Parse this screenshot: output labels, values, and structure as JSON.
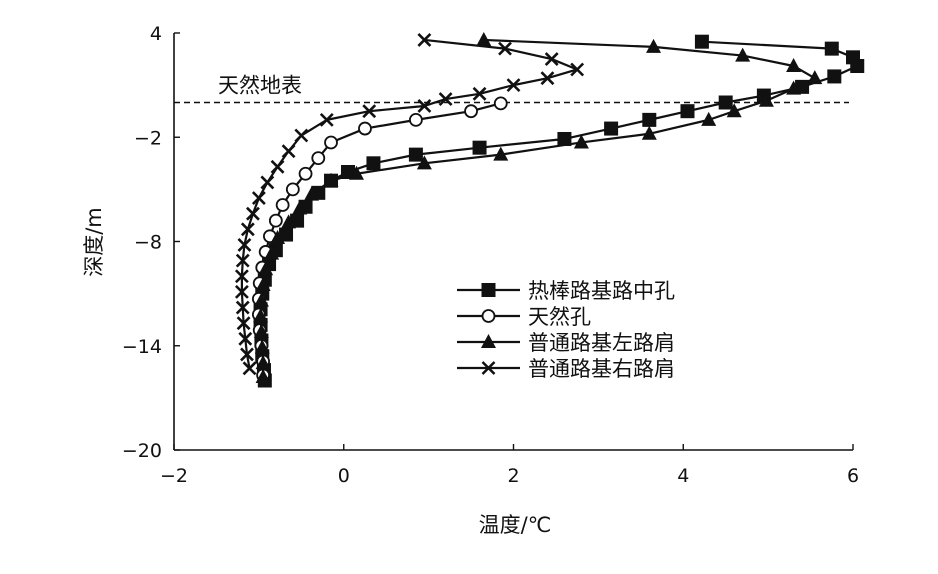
{
  "chart_data": {
    "type": "line",
    "title": "",
    "xlabel": "温度/℃",
    "ylabel": "深度/m",
    "xlim": [
      -2,
      6
    ],
    "ylim": [
      -20,
      4
    ],
    "xticks": [
      -2,
      0,
      2,
      4,
      6
    ],
    "yticks": [
      4,
      -2,
      -8,
      -14,
      -20
    ],
    "xtick_labels": [
      "−2",
      "0",
      "2",
      "4",
      "6"
    ],
    "ytick_labels": [
      "4",
      "−2",
      "−8",
      "−14",
      "−20"
    ],
    "grid": false,
    "legend_position": "right-center",
    "reference_line": {
      "y": 0.0,
      "label": "天然地表",
      "style": "dashed"
    },
    "series": [
      {
        "name": "热棒路基路中孔",
        "marker": "square",
        "points": [
          [
            4.22,
            3.5
          ],
          [
            5.75,
            3.1
          ],
          [
            6.0,
            2.6
          ],
          [
            6.05,
            2.1
          ],
          [
            5.78,
            1.5
          ],
          [
            5.4,
            0.9
          ],
          [
            4.95,
            0.4
          ],
          [
            4.5,
            0.0
          ],
          [
            4.05,
            -0.5
          ],
          [
            3.6,
            -1.0
          ],
          [
            3.15,
            -1.5
          ],
          [
            2.6,
            -2.1
          ],
          [
            1.6,
            -2.6
          ],
          [
            0.85,
            -3.0
          ],
          [
            0.35,
            -3.5
          ],
          [
            0.05,
            -4.0
          ],
          [
            -0.15,
            -4.5
          ],
          [
            -0.3,
            -5.2
          ],
          [
            -0.45,
            -6.0
          ],
          [
            -0.55,
            -6.8
          ],
          [
            -0.68,
            -7.6
          ],
          [
            -0.8,
            -8.5
          ],
          [
            -0.88,
            -9.3
          ],
          [
            -0.93,
            -10.2
          ],
          [
            -0.96,
            -11.0
          ],
          [
            -0.98,
            -11.9
          ],
          [
            -0.98,
            -12.8
          ],
          [
            -0.97,
            -13.7
          ],
          [
            -0.96,
            -14.6
          ],
          [
            -0.94,
            -15.4
          ],
          [
            -0.93,
            -16.0
          ]
        ]
      },
      {
        "name": "天然孔",
        "marker": "circle",
        "points": [
          [
            1.85,
            -0.05
          ],
          [
            1.5,
            -0.5
          ],
          [
            0.85,
            -1.0
          ],
          [
            0.25,
            -1.5
          ],
          [
            -0.15,
            -2.3
          ],
          [
            -0.3,
            -3.2
          ],
          [
            -0.45,
            -4.1
          ],
          [
            -0.6,
            -5.0
          ],
          [
            -0.72,
            -5.9
          ],
          [
            -0.8,
            -6.8
          ],
          [
            -0.87,
            -7.7
          ],
          [
            -0.92,
            -8.6
          ],
          [
            -0.96,
            -9.5
          ],
          [
            -0.99,
            -10.4
          ],
          [
            -1.0,
            -11.3
          ],
          [
            -1.0,
            -12.2
          ],
          [
            -0.99,
            -13.1
          ],
          [
            -0.97,
            -14.0
          ],
          [
            -0.95,
            -14.9
          ],
          [
            -0.95,
            -15.7
          ]
        ]
      },
      {
        "name": "普通路基左路肩",
        "marker": "triangle",
        "points": [
          [
            1.65,
            3.6
          ],
          [
            3.65,
            3.2
          ],
          [
            4.7,
            2.7
          ],
          [
            5.3,
            2.1
          ],
          [
            5.55,
            1.4
          ],
          [
            5.3,
            0.8
          ],
          [
            4.98,
            0.1
          ],
          [
            4.6,
            -0.5
          ],
          [
            4.3,
            -1.0
          ],
          [
            3.6,
            -1.8
          ],
          [
            2.8,
            -2.3
          ],
          [
            1.85,
            -3.0
          ],
          [
            0.95,
            -3.5
          ],
          [
            0.15,
            -4.1
          ],
          [
            -0.15,
            -4.5
          ],
          [
            -0.38,
            -5.3
          ],
          [
            -0.52,
            -6.1
          ],
          [
            -0.65,
            -6.9
          ],
          [
            -0.78,
            -7.8
          ],
          [
            -0.85,
            -8.7
          ],
          [
            -0.92,
            -9.6
          ],
          [
            -0.95,
            -10.5
          ],
          [
            -0.97,
            -11.4
          ],
          [
            -0.98,
            -12.3
          ],
          [
            -0.97,
            -13.2
          ],
          [
            -0.96,
            -14.1
          ],
          [
            -0.95,
            -15.0
          ],
          [
            -0.95,
            -15.8
          ]
        ]
      },
      {
        "name": "普通路基右路肩",
        "marker": "cross",
        "points": [
          [
            0.95,
            3.6
          ],
          [
            1.9,
            3.1
          ],
          [
            2.45,
            2.5
          ],
          [
            2.75,
            1.9
          ],
          [
            2.4,
            1.4
          ],
          [
            2.0,
            1.0
          ],
          [
            1.6,
            0.5
          ],
          [
            1.2,
            0.2
          ],
          [
            0.95,
            -0.2
          ],
          [
            0.3,
            -0.5
          ],
          [
            -0.2,
            -1.0
          ],
          [
            -0.5,
            -1.9
          ],
          [
            -0.65,
            -2.8
          ],
          [
            -0.78,
            -3.7
          ],
          [
            -0.9,
            -4.6
          ],
          [
            -1.0,
            -5.5
          ],
          [
            -1.07,
            -6.4
          ],
          [
            -1.13,
            -7.3
          ],
          [
            -1.17,
            -8.2
          ],
          [
            -1.19,
            -9.1
          ],
          [
            -1.2,
            -10.0
          ],
          [
            -1.2,
            -10.9
          ],
          [
            -1.19,
            -11.8
          ],
          [
            -1.18,
            -12.7
          ],
          [
            -1.16,
            -13.6
          ],
          [
            -1.14,
            -14.5
          ],
          [
            -1.11,
            -15.3
          ]
        ]
      }
    ]
  }
}
